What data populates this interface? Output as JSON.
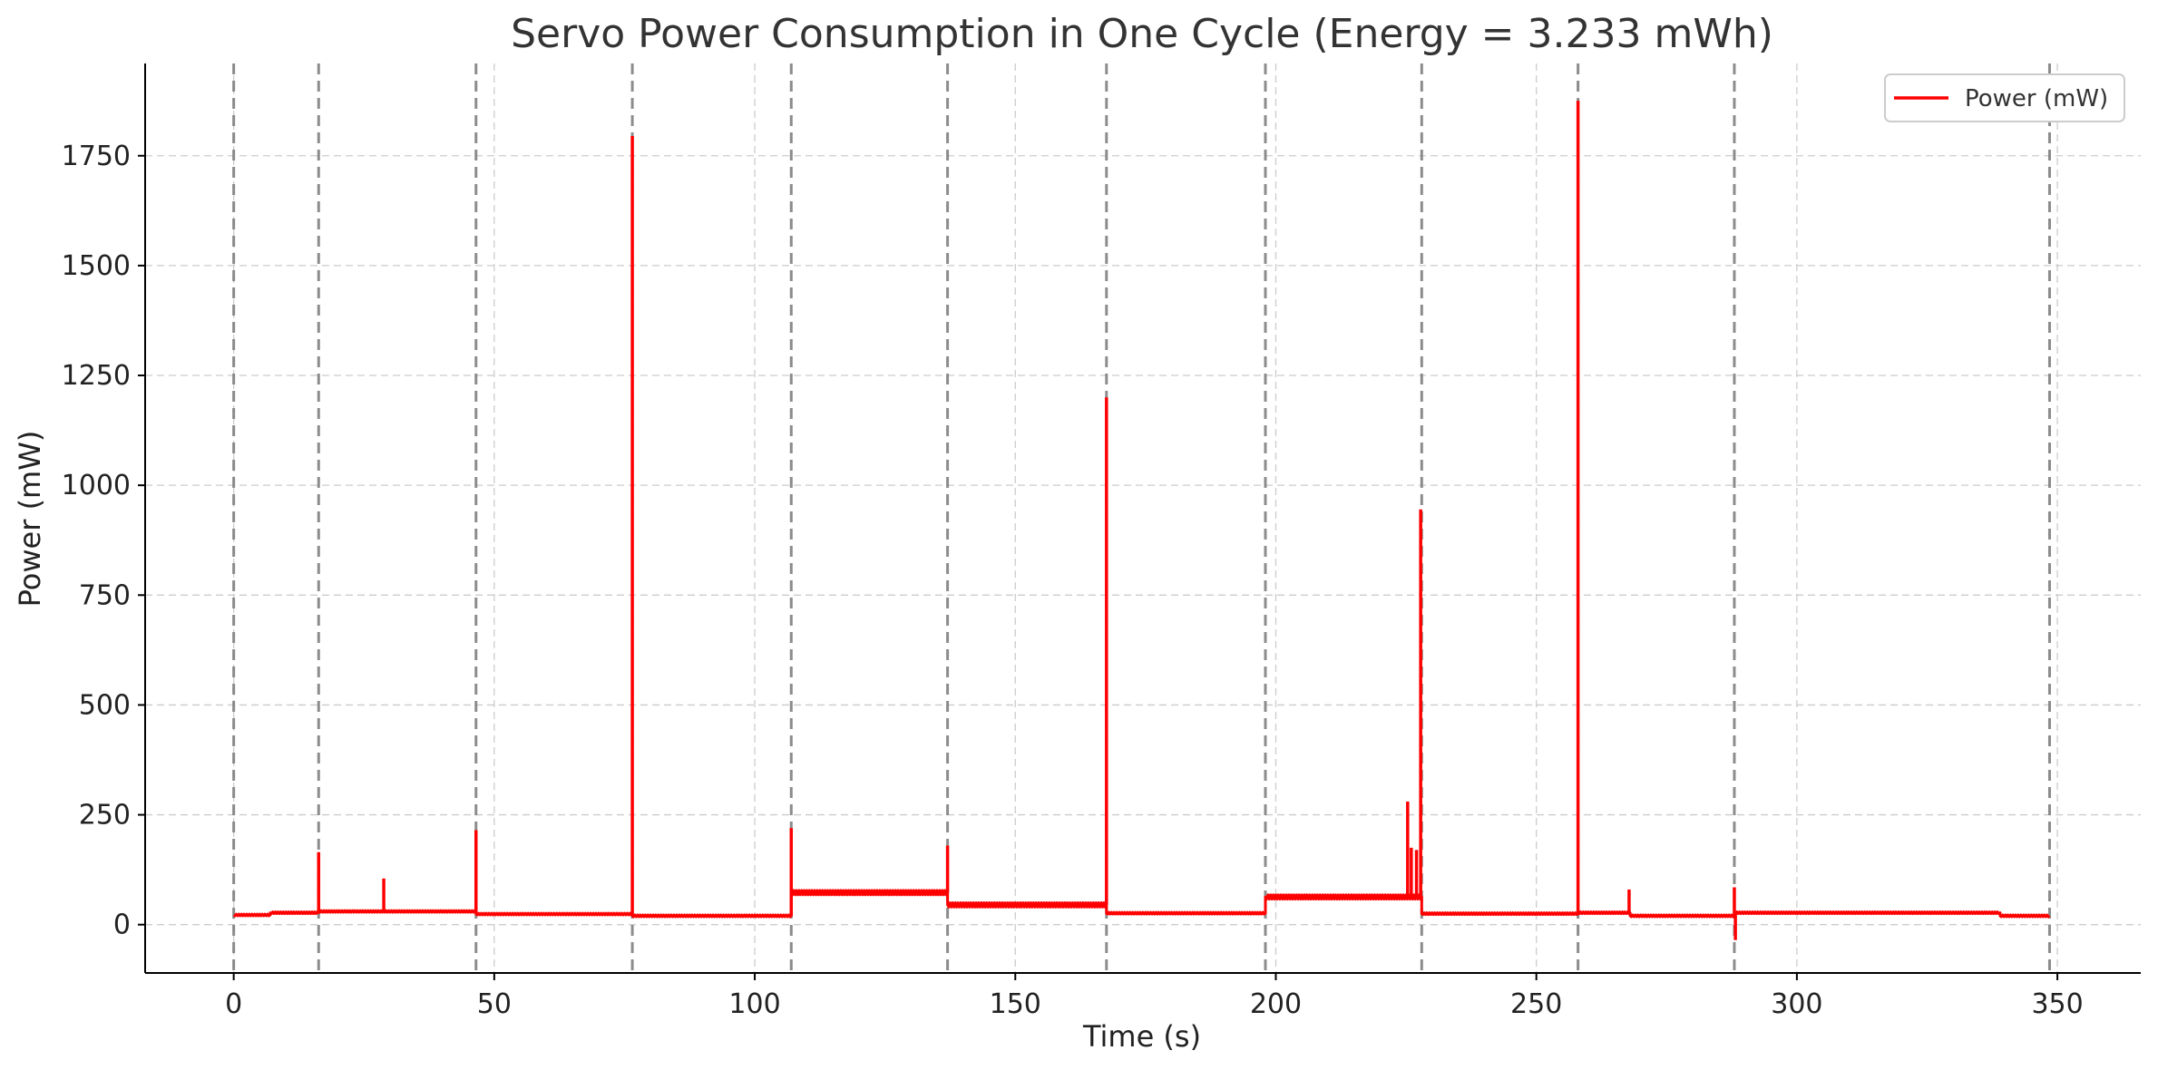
{
  "chart_data": {
    "type": "line",
    "title": "Servo Power Consumption in One Cycle (Energy = 3.233 mWh)",
    "xlabel": "Time (s)",
    "ylabel": "Power (mW)",
    "xlim": [
      -17,
      366
    ],
    "ylim": [
      -110,
      1960
    ],
    "x_ticks": [
      0,
      50,
      100,
      150,
      200,
      250,
      300,
      350
    ],
    "y_ticks": [
      0,
      250,
      500,
      750,
      1000,
      1250,
      1500,
      1750
    ],
    "grid": true,
    "legend_position": "top-right",
    "series": [
      {
        "name": "Power (mW)",
        "color": "#ff0000",
        "segments": [
          {
            "start": 0,
            "end": 7,
            "level": 22
          },
          {
            "start": 7,
            "end": 16.3,
            "level": 27
          },
          {
            "start": 16.3,
            "end": 46.5,
            "level": 30
          },
          {
            "start": 46.5,
            "end": 76.5,
            "level": 24
          },
          {
            "start": 76.5,
            "end": 107,
            "level": 20
          },
          {
            "start": 107,
            "end": 137,
            "level": 73
          },
          {
            "start": 137,
            "end": 167.5,
            "level": 45
          },
          {
            "start": 167.5,
            "end": 198,
            "level": 26
          },
          {
            "start": 198,
            "end": 228,
            "level": 63
          },
          {
            "start": 228,
            "end": 258,
            "level": 25
          },
          {
            "start": 258,
            "end": 268,
            "level": 27
          },
          {
            "start": 268,
            "end": 288,
            "level": 20
          },
          {
            "start": 288,
            "end": 339,
            "level": 27
          },
          {
            "start": 339,
            "end": 348.5,
            "level": 20
          }
        ],
        "spikes": [
          {
            "x": 16.3,
            "y": 165
          },
          {
            "x": 28.8,
            "y": 105
          },
          {
            "x": 46.5,
            "y": 215
          },
          {
            "x": 76.5,
            "y": 1795
          },
          {
            "x": 107,
            "y": 220
          },
          {
            "x": 137,
            "y": 180
          },
          {
            "x": 167.5,
            "y": 1200
          },
          {
            "x": 225.3,
            "y": 280
          },
          {
            "x": 226,
            "y": 175
          },
          {
            "x": 227,
            "y": 170
          },
          {
            "x": 227.8,
            "y": 945
          },
          {
            "x": 258,
            "y": 1875
          },
          {
            "x": 267.8,
            "y": 80
          },
          {
            "x": 288,
            "y": 85
          },
          {
            "x": 288.2,
            "y": -35
          }
        ]
      }
    ],
    "cycle_markers": {
      "style": "dashed",
      "color": "#808080",
      "x": [
        0,
        16.3,
        46.5,
        76.5,
        107,
        137,
        167.5,
        198,
        228,
        258,
        288,
        348.5
      ]
    }
  }
}
